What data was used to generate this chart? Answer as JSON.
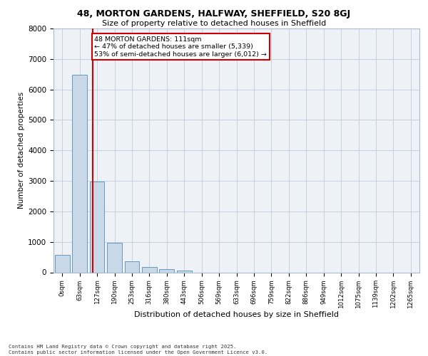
{
  "title_line1": "48, MORTON GARDENS, HALFWAY, SHEFFIELD, S20 8GJ",
  "title_line2": "Size of property relative to detached houses in Sheffield",
  "xlabel": "Distribution of detached houses by size in Sheffield",
  "ylabel": "Number of detached properties",
  "bar_labels": [
    "0sqm",
    "63sqm",
    "127sqm",
    "190sqm",
    "253sqm",
    "316sqm",
    "380sqm",
    "443sqm",
    "506sqm",
    "569sqm",
    "633sqm",
    "696sqm",
    "759sqm",
    "822sqm",
    "886sqm",
    "949sqm",
    "1012sqm",
    "1075sqm",
    "1139sqm",
    "1202sqm",
    "1265sqm"
  ],
  "bar_values": [
    580,
    6480,
    2980,
    960,
    360,
    170,
    110,
    70,
    0,
    0,
    0,
    0,
    0,
    0,
    0,
    0,
    0,
    0,
    0,
    0,
    0
  ],
  "bar_color": "#c8d8e8",
  "bar_edge_color": "#6699bb",
  "annotation_text": "48 MORTON GARDENS: 111sqm\n← 47% of detached houses are smaller (5,339)\n53% of semi-detached houses are larger (6,012) →",
  "vline_color": "#cc0000",
  "annotation_box_color": "#ffffff",
  "annotation_box_edge": "#cc0000",
  "ylim": [
    0,
    8000
  ],
  "yticks": [
    0,
    1000,
    2000,
    3000,
    4000,
    5000,
    6000,
    7000,
    8000
  ],
  "footer_line1": "Contains HM Land Registry data © Crown copyright and database right 2025.",
  "footer_line2": "Contains public sector information licensed under the Open Government Licence v3.0.",
  "bg_color": "#eef2f7",
  "grid_color": "#c0ccdd"
}
